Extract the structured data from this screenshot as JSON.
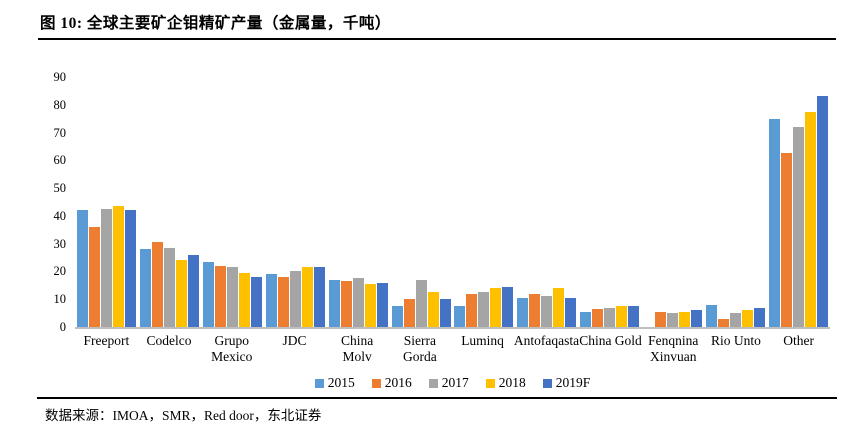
{
  "figure": {
    "title": "图  10:  全球主要矿企钼精矿产量（金属量，千吨）",
    "source": "数据来源：IMOA，SMR，Red door，东北证券"
  },
  "chart_data": {
    "type": "bar",
    "title": "全球主要矿企钼精矿产量（金属量，千吨）",
    "xlabel": "",
    "ylabel": "",
    "ylim": [
      0,
      90
    ],
    "y_ticks": [
      0,
      10,
      20,
      30,
      40,
      50,
      60,
      70,
      80,
      90
    ],
    "grid": false,
    "legend_position": "bottom",
    "axis_line_color": "#bfbfbf",
    "categories": [
      "Freeport",
      "Codelco",
      "Grupo\nMexico",
      "JDC",
      "China Molv",
      "Sierra\nGorda",
      "Luminq",
      "Antofaqasta",
      "China Gold",
      "Fenqnina\nXinvuan",
      "Rio Unto",
      "Other"
    ],
    "series": [
      {
        "name": "2015",
        "color": "#5B9BD5",
        "values": [
          42,
          28,
          23.5,
          19,
          17,
          7.5,
          7.5,
          10.5,
          5.5,
          0,
          8,
          75
        ]
      },
      {
        "name": "2016",
        "color": "#ED7D31",
        "values": [
          36,
          30.5,
          22,
          18,
          16.5,
          10,
          12,
          12,
          6.5,
          5.5,
          3,
          62.5
        ]
      },
      {
        "name": "2017",
        "color": "#A5A5A5",
        "values": [
          42.5,
          28.5,
          21.5,
          20,
          17.5,
          17,
          12.5,
          11,
          7,
          5,
          5,
          72
        ]
      },
      {
        "name": "2018",
        "color": "#FFC000",
        "values": [
          43.5,
          24,
          19.5,
          21.5,
          15.5,
          12.5,
          14,
          14,
          7.5,
          5.5,
          6,
          77.5
        ]
      },
      {
        "name": "2019F",
        "color": "#4472C4",
        "values": [
          42,
          26,
          18,
          21.5,
          16,
          10,
          14.5,
          10.5,
          7.5,
          6,
          7,
          83
        ]
      }
    ]
  }
}
